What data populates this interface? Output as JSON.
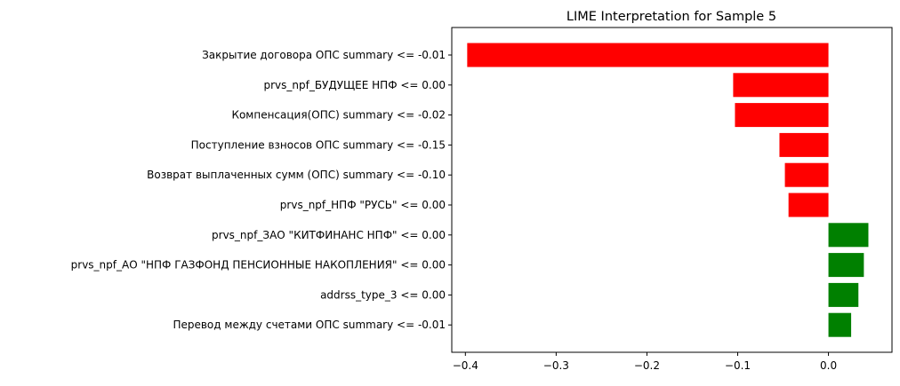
{
  "chart_data": {
    "type": "bar",
    "orientation": "horizontal",
    "title": "LIME Interpretation for Sample 5",
    "xlabel": "",
    "ylabel": "",
    "xlim": [
      -0.415,
      0.07
    ],
    "xticks": [
      -0.4,
      -0.3,
      -0.2,
      -0.1,
      0.0
    ],
    "xtick_labels": [
      "−0.4",
      "−0.3",
      "−0.2",
      "−0.1",
      "0.0"
    ],
    "grid": false,
    "colors": {
      "negative": "#ff0000",
      "positive": "#008000"
    },
    "categories": [
      "Закрытие договора ОПС summary <= -0.01",
      "prvs_npf_БУДУЩЕЕ НПФ <= 0.00",
      "Компенсация(ОПС) summary <= -0.02",
      "Поступление взносов ОПС summary <= -0.15",
      "Возврат выплаченных сумм (ОПС) summary <= -0.10",
      "prvs_npf_НПФ \"РУСЬ\" <= 0.00",
      "prvs_npf_ЗАО \"КИТФИНАНС НПФ\" <= 0.00",
      "prvs_npf_АО \"НПФ ГАЗФОНД ПЕНСИОННЫЕ НАКОПЛЕНИЯ\" <= 0.00",
      "addrss_type_3 <= 0.00",
      "Перевод между счетами ОПС summary <= -0.01"
    ],
    "values": [
      -0.398,
      -0.105,
      -0.103,
      -0.054,
      -0.048,
      -0.044,
      0.044,
      0.039,
      0.033,
      0.025
    ]
  }
}
